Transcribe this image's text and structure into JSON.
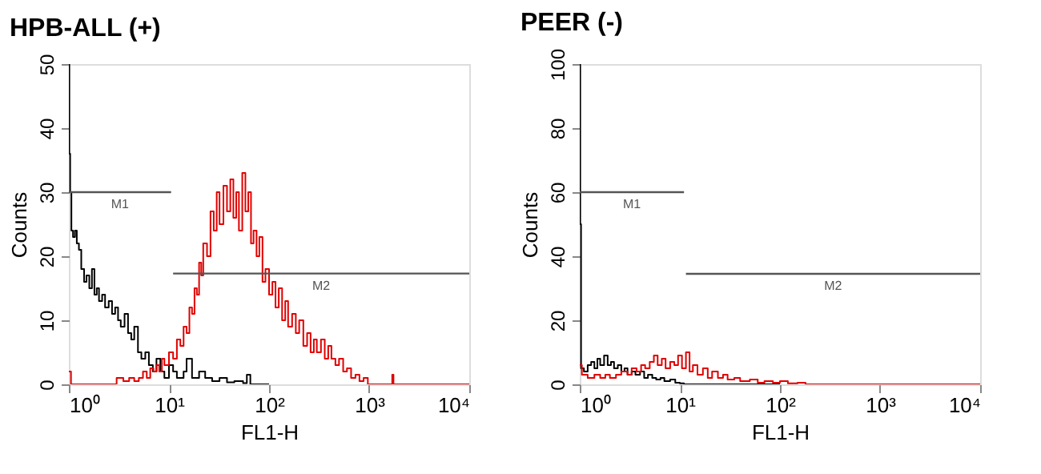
{
  "chart_data": [
    {
      "type": "step",
      "title": "HPB-ALL (+)",
      "xlabel": "FL1-H",
      "ylabel": "Counts",
      "log": "x",
      "grid": false,
      "xlim": [
        1,
        10000
      ],
      "xticks": [
        {
          "value": 1,
          "label": "10⁰"
        },
        {
          "value": 10,
          "label": "10¹"
        },
        {
          "value": 100,
          "label": "10²"
        },
        {
          "value": 1000,
          "label": "10³"
        },
        {
          "value": 10000,
          "label": "10⁴"
        }
      ],
      "ylim": [
        0,
        50
      ],
      "yticks": [
        0,
        10,
        20,
        30,
        40,
        50
      ],
      "series": [
        {
          "color": "#000000",
          "x": [
            1.0,
            1.01,
            1.03,
            1.06,
            1.1,
            1.15,
            1.2,
            1.26,
            1.33,
            1.42,
            1.5,
            1.6,
            1.7,
            1.8,
            1.9,
            2.0,
            2.15,
            2.3,
            2.5,
            2.7,
            2.9,
            3.1,
            3.3,
            3.6,
            3.9,
            4.2,
            4.5,
            4.9,
            5.3,
            5.8,
            6.3,
            6.9,
            7.5,
            8.2,
            9.0,
            10,
            11,
            12,
            14,
            15,
            17,
            20,
            23,
            27,
            32,
            38,
            45,
            55,
            60,
            65,
            100
          ],
          "values": [
            50,
            36,
            30,
            24,
            23,
            24,
            22,
            21,
            18,
            16,
            17,
            15,
            18,
            14,
            15,
            13,
            14,
            12,
            13,
            11,
            12,
            10,
            9,
            11,
            8,
            7,
            9,
            5,
            4,
            5,
            3,
            2,
            4,
            2,
            1,
            3,
            2,
            1,
            2,
            4,
            1,
            2,
            1,
            0.5,
            1,
            0.3,
            0.5,
            0.2,
            1.5,
            0,
            0
          ]
        },
        {
          "color": "#e00000",
          "x": [
            1.0,
            1.05,
            2.8,
            3.0,
            3.5,
            4,
            4.5,
            5,
            5.5,
            6,
            6.5,
            7,
            7.5,
            8,
            8.5,
            9,
            10,
            11,
            12,
            13,
            14,
            15,
            16,
            17,
            18,
            19,
            20,
            21,
            22,
            24,
            26,
            28,
            30,
            32,
            35,
            38,
            41,
            44,
            47,
            50,
            54,
            58,
            62,
            66,
            70,
            75,
            80,
            86,
            92,
            100,
            108,
            116,
            125,
            135,
            145,
            155,
            170,
            185,
            200,
            220,
            240,
            260,
            280,
            300,
            330,
            360,
            390,
            420,
            460,
            500,
            550,
            600,
            660,
            730,
            800,
            880,
            970,
            1650,
            1700,
            1750,
            10000
          ],
          "values": [
            2,
            0,
            0,
            1,
            0.5,
            1,
            0.5,
            1,
            2,
            1,
            2.5,
            2,
            3,
            2,
            4,
            3,
            5,
            4,
            7,
            6,
            9,
            8,
            12,
            11,
            15,
            14,
            19,
            17,
            22,
            20,
            27,
            24,
            30,
            25,
            31,
            27,
            32,
            26,
            30,
            24,
            33,
            27,
            30,
            22,
            24,
            20,
            23,
            16,
            18,
            14,
            16,
            12,
            15,
            10,
            13,
            9,
            11,
            8,
            10,
            6,
            8,
            5,
            7,
            5,
            7,
            4,
            6,
            4,
            3,
            4,
            2,
            2.5,
            1,
            1.5,
            0.5,
            1,
            0,
            0,
            1.5,
            0,
            0
          ]
        },
        {
          "type": "line",
          "name": "M1",
          "color": "#555555",
          "x": [
            1,
            10.5
          ],
          "values": [
            30,
            30
          ]
        },
        {
          "type": "line",
          "name": "M2",
          "color": "#555555",
          "x": [
            11,
            10000
          ],
          "values": [
            17.3,
            17.3
          ]
        }
      ]
    },
    {
      "type": "step",
      "title": "PEER (-)",
      "xlabel": "FL1-H",
      "ylabel": "Counts",
      "log": "x",
      "grid": false,
      "xlim": [
        1,
        10000
      ],
      "xticks": [
        {
          "value": 1,
          "label": "10⁰"
        },
        {
          "value": 10,
          "label": "10¹"
        },
        {
          "value": 100,
          "label": "10²"
        },
        {
          "value": 1000,
          "label": "10³"
        },
        {
          "value": 10000,
          "label": "10⁴"
        }
      ],
      "ylim": [
        0,
        100
      ],
      "yticks": [
        0,
        20,
        40,
        60,
        80,
        100
      ],
      "series": [
        {
          "color": "#000000",
          "x": [
            1.0,
            1.01,
            1.03,
            1.1,
            1.2,
            1.3,
            1.4,
            1.5,
            1.6,
            1.75,
            1.9,
            2.05,
            2.2,
            2.4,
            2.6,
            2.8,
            3.0,
            3.3,
            3.6,
            4.0,
            4.4,
            4.8,
            5.3,
            5.8,
            6.4,
            7,
            8,
            9,
            10,
            11,
            100
          ],
          "values": [
            100,
            50,
            5,
            4,
            6,
            7,
            5,
            8,
            6,
            9,
            6,
            7,
            5,
            6,
            4,
            5,
            3,
            4,
            3,
            4,
            2,
            3,
            2,
            1.5,
            2,
            1,
            1.5,
            0.5,
            0.3,
            0,
            0
          ]
        },
        {
          "color": "#e00000",
          "x": [
            1.0,
            1.05,
            1.2,
            1.4,
            1.6,
            1.8,
            2.0,
            2.3,
            2.6,
            3.0,
            3.3,
            3.7,
            4.1,
            4.5,
            5.0,
            5.5,
            6.0,
            6.6,
            7.2,
            8.0,
            8.8,
            9.6,
            10.5,
            11.5,
            12.5,
            13.5,
            15,
            17,
            19,
            21,
            24,
            27,
            30,
            35,
            40,
            50,
            60,
            70,
            85,
            100,
            120,
            150,
            180,
            10000
          ],
          "values": [
            6,
            3,
            2,
            3,
            2,
            3,
            2,
            3,
            4,
            3,
            5,
            4,
            6,
            5,
            7,
            9,
            6,
            8,
            5,
            7,
            6,
            9,
            5,
            10,
            4,
            6,
            3,
            5,
            2,
            4,
            2,
            3,
            1.5,
            2,
            1,
            1.5,
            0.5,
            1,
            0.5,
            1,
            0.3,
            0.5,
            0,
            0
          ]
        },
        {
          "type": "line",
          "name": "M1",
          "color": "#555555",
          "x": [
            1,
            11
          ],
          "values": [
            60,
            60
          ]
        },
        {
          "type": "line",
          "name": "M2",
          "color": "#555555",
          "x": [
            11.5,
            10000
          ],
          "values": [
            34.5,
            34.5
          ]
        }
      ]
    }
  ]
}
